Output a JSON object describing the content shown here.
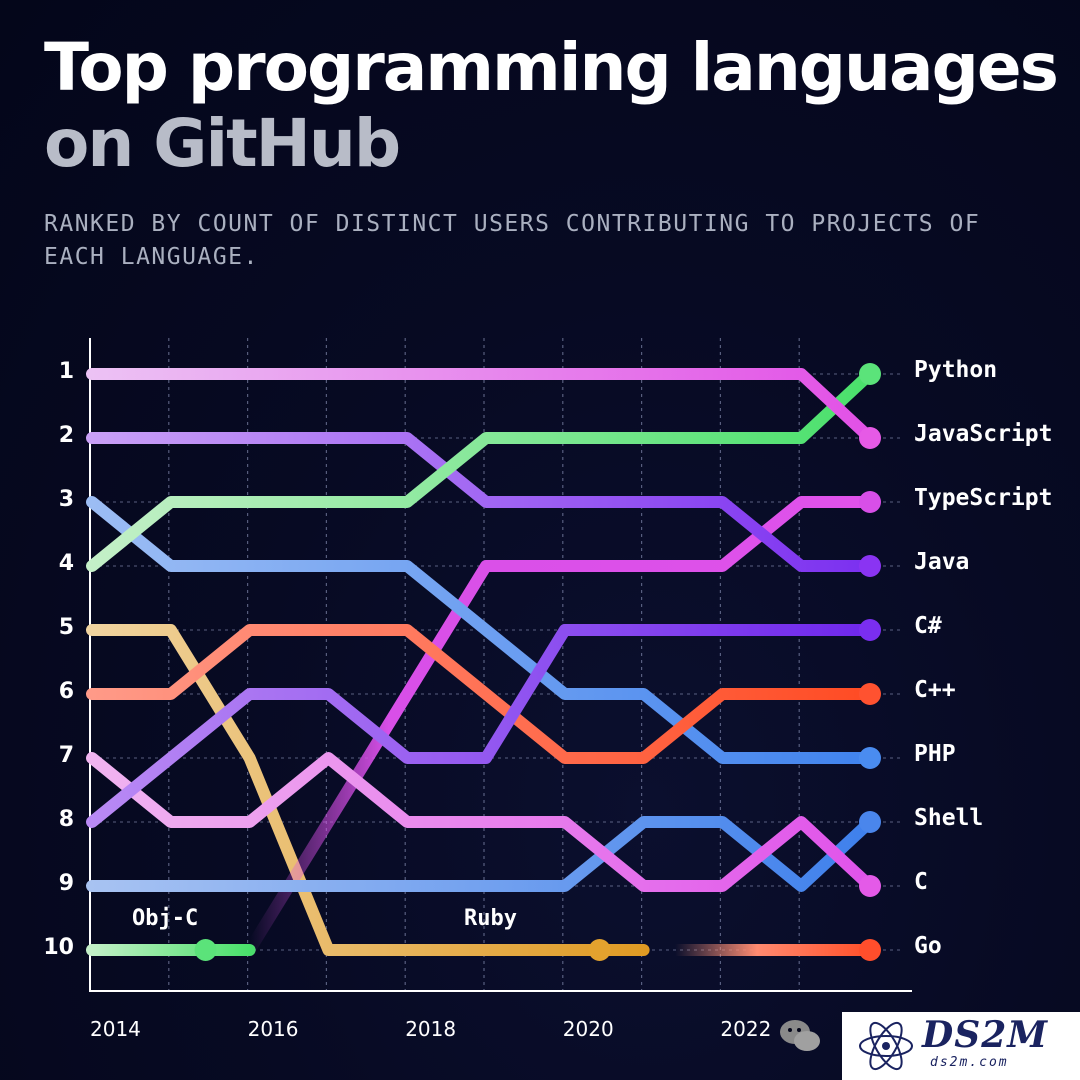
{
  "header": {
    "title_line1": "Top programming languages",
    "title_line2": "on GitHub",
    "subtitle": "RANKED BY COUNT OF DISTINCT USERS CONTRIBUTING TO PROJECTS OF EACH LANGUAGE."
  },
  "chart_data": {
    "type": "line",
    "title": "Top programming languages on GitHub",
    "subtitle": "RANKED BY COUNT OF DISTINCT USERS CONTRIBUTING TO PROJECTS OF EACH LANGUAGE.",
    "x": [
      2014,
      2015,
      2016,
      2017,
      2018,
      2019,
      2020,
      2021,
      2022,
      2023,
      2024
    ],
    "x_tick_labels": [
      "2014",
      "2016",
      "2018",
      "2020",
      "2022"
    ],
    "y_tick_labels": [
      "1",
      "2",
      "3",
      "4",
      "5",
      "6",
      "7",
      "8",
      "9",
      "10"
    ],
    "ylim": [
      1,
      10
    ],
    "y_inverted": true,
    "grid": true,
    "series": [
      {
        "name": "Python",
        "color": "#5be37a",
        "values": [
          4,
          3,
          3,
          3,
          3,
          2,
          2,
          2,
          2,
          2,
          1
        ]
      },
      {
        "name": "JavaScript",
        "color": "#e65ae6",
        "values": [
          1,
          1,
          1,
          1,
          1,
          1,
          1,
          1,
          1,
          1,
          2
        ]
      },
      {
        "name": "TypeScript",
        "color": "#d84fe8",
        "values": [
          null,
          null,
          10,
          8,
          6,
          4,
          4,
          4,
          4,
          3,
          3
        ]
      },
      {
        "name": "Java",
        "color": "#8a34f2",
        "values": [
          2,
          2,
          2,
          2,
          2,
          3,
          3,
          3,
          3,
          4,
          4
        ]
      },
      {
        "name": "C#",
        "color": "#7a2ef0",
        "values": [
          8,
          7,
          6,
          6,
          7,
          7,
          5,
          5,
          5,
          5,
          5
        ]
      },
      {
        "name": "C++",
        "color": "#ff5230",
        "values": [
          6,
          6,
          5,
          5,
          5,
          6,
          7,
          7,
          6,
          6,
          6
        ]
      },
      {
        "name": "PHP",
        "color": "#4a8cf0",
        "values": [
          3,
          4,
          4,
          4,
          4,
          5,
          6,
          6,
          7,
          7,
          7
        ]
      },
      {
        "name": "Shell",
        "color": "#4a86ec",
        "values": [
          9,
          9,
          9,
          9,
          9,
          9,
          9,
          8,
          8,
          9,
          8
        ]
      },
      {
        "name": "C",
        "color": "#e45ae8",
        "values": [
          7,
          8,
          8,
          7,
          8,
          8,
          8,
          9,
          9,
          8,
          9
        ]
      },
      {
        "name": "Go",
        "color": "#ff4e2c",
        "values": [
          null,
          null,
          null,
          null,
          null,
          null,
          null,
          null,
          10,
          10,
          10
        ]
      },
      {
        "name": "Obj-C",
        "color": "#5be37a",
        "values": [
          10,
          10,
          10,
          null,
          null,
          null,
          null,
          null,
          null,
          null,
          null
        ]
      },
      {
        "name": "Ruby",
        "color": "#e3a22e",
        "values": [
          5,
          5,
          7,
          10,
          10,
          10,
          10,
          10,
          null,
          null,
          null
        ]
      }
    ],
    "annotations": [
      "Obj-C",
      "Ruby"
    ]
  },
  "watermark": {
    "logo_text": "DS2M",
    "logo_sub": "ds2m.com"
  }
}
